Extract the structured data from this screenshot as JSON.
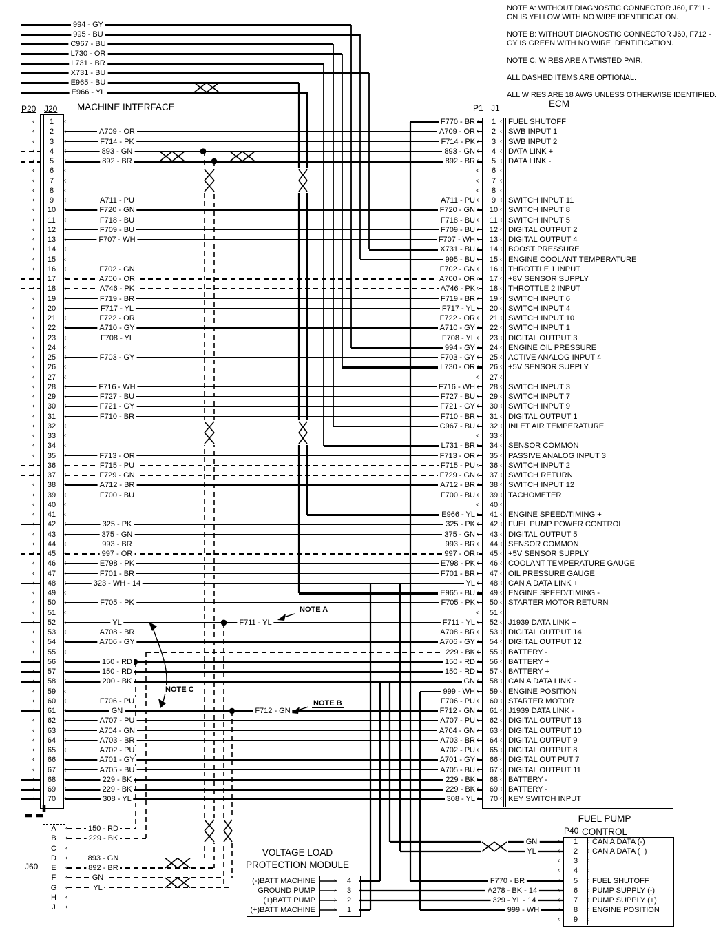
{
  "diagram": {
    "notes": [
      "NOTE A: WITHOUT DIAGNOSTIC CONNECTOR J60, F711 - GN IS YELLOW WITH NO WIRE IDENTIFICATION.",
      "NOTE B: WITHOUT DIAGNOSTIC CONNECTOR J60, F712 - GY IS GREEN WITH NO WIRE IDENTIFICATION.",
      "NOTE C: WIRES ARE A TWISTED PAIR.",
      "ALL DASHED ITEMS ARE OPTIONAL.",
      "ALL WIRES ARE 18 AWG UNLESS OTHERWISE IDENTIFIED."
    ],
    "top_wires": [
      "994 - GY",
      "995 - BU",
      "C967 - BU",
      "L730 - OR",
      "L731 - BR",
      "X731 - BU",
      "E965 - BU",
      "E966 - YL"
    ],
    "top_vertical_labels": [
      "L731 - BR",
      "C967 - BU",
      "L730 - OR",
      "994 - GY",
      "995 - BU",
      "X731 - BU"
    ],
    "bottom_vertical_labels": [
      "323 - WH - 14",
      "200 - BK - 14",
      "GN",
      "YL",
      "F770 - BR",
      "999 - WH"
    ],
    "callouts": {
      "note_a": "NOTE A",
      "note_b": "NOTE B",
      "note_c": "NOTE C",
      "f711_label": "F711 - YL",
      "f712_label": "F712 - GN"
    }
  },
  "machine_interface": {
    "plug": "P20",
    "jack": "J20",
    "title": "MACHINE INTERFACE",
    "pins": [
      {
        "n": "1",
        "w": ""
      },
      {
        "n": "2",
        "w": "A709 - OR"
      },
      {
        "n": "3",
        "w": "F714 - PK"
      },
      {
        "n": "4",
        "w": "893 - GN",
        "s": "b",
        "e": "d"
      },
      {
        "n": "5",
        "w": "892 - BR",
        "s": "b",
        "e": "d"
      },
      {
        "n": "6",
        "w": ""
      },
      {
        "n": "7",
        "w": ""
      },
      {
        "n": "8",
        "w": ""
      },
      {
        "n": "9",
        "w": "A711 - PU"
      },
      {
        "n": "10",
        "w": "F720 - GN"
      },
      {
        "n": "11",
        "w": "F718 - BU"
      },
      {
        "n": "12",
        "w": "F709 - BU"
      },
      {
        "n": "13",
        "w": "F707 - WH"
      },
      {
        "n": "14",
        "w": ""
      },
      {
        "n": "15",
        "w": ""
      },
      {
        "n": "16",
        "w": "F702 - GN",
        "s": "d",
        "e": "d"
      },
      {
        "n": "17",
        "w": "A700 - OR",
        "s": "bd",
        "e": "d"
      },
      {
        "n": "18",
        "w": "A746 - PK",
        "s": "d",
        "e": "d"
      },
      {
        "n": "19",
        "w": "F719 - BR"
      },
      {
        "n": "20",
        "w": "F717 - YL"
      },
      {
        "n": "21",
        "w": "F722 - OR"
      },
      {
        "n": "22",
        "w": "A710 - GY"
      },
      {
        "n": "23",
        "w": "F708 - YL"
      },
      {
        "n": "24",
        "w": ""
      },
      {
        "n": "25",
        "w": "F703 - GY"
      },
      {
        "n": "26",
        "w": ""
      },
      {
        "n": "27",
        "w": ""
      },
      {
        "n": "28",
        "w": "F716 - WH"
      },
      {
        "n": "29",
        "w": "F727 - BU"
      },
      {
        "n": "30",
        "w": "F721 - GY"
      },
      {
        "n": "31",
        "w": "F710 - BR"
      },
      {
        "n": "32",
        "w": ""
      },
      {
        "n": "33",
        "w": ""
      },
      {
        "n": "34",
        "w": ""
      },
      {
        "n": "35",
        "w": "F713 - OR"
      },
      {
        "n": "36",
        "w": "F715 - PU",
        "s": "d",
        "e": "d"
      },
      {
        "n": "37",
        "w": "F729 - GN",
        "s": "d",
        "e": "d"
      },
      {
        "n": "38",
        "w": "A712 - BR"
      },
      {
        "n": "39",
        "w": "F700 - BU"
      },
      {
        "n": "40",
        "w": ""
      },
      {
        "n": "41",
        "w": ""
      },
      {
        "n": "42",
        "w": "325 - PK",
        "e": "s"
      },
      {
        "n": "43",
        "w": "375 - GN"
      },
      {
        "n": "44",
        "w": "993 - BR",
        "s": "d",
        "e": "d"
      },
      {
        "n": "45",
        "w": "997 - OR",
        "s": "d",
        "e": "d"
      },
      {
        "n": "46",
        "w": "E798 - PK"
      },
      {
        "n": "47",
        "w": "F701 - BR"
      },
      {
        "n": "48",
        "w": "323 - WH - 14",
        "s": "b",
        "e": "s"
      },
      {
        "n": "49",
        "w": ""
      },
      {
        "n": "50",
        "w": "F705 - PK"
      },
      {
        "n": "51",
        "w": ""
      },
      {
        "n": "52",
        "w": "YL",
        "s": "b",
        "e": "s"
      },
      {
        "n": "53",
        "w": "A708 - BR"
      },
      {
        "n": "54",
        "w": "A706 - GY"
      },
      {
        "n": "55",
        "w": ""
      },
      {
        "n": "56",
        "w": "150 - RD",
        "s": "b",
        "e": "s"
      },
      {
        "n": "57",
        "w": "150 - RD",
        "s": "b",
        "e": "s"
      },
      {
        "n": "58",
        "w": "200 - BK",
        "s": "b",
        "e": "s"
      },
      {
        "n": "59",
        "w": ""
      },
      {
        "n": "60",
        "w": "F706 - PU"
      },
      {
        "n": "61",
        "w": "GN",
        "s": "b",
        "e": "s"
      },
      {
        "n": "62",
        "w": "A707 - PU"
      },
      {
        "n": "63",
        "w": "A704 - GN"
      },
      {
        "n": "64",
        "w": "A703 - BR",
        "s": "b"
      },
      {
        "n": "65",
        "w": "A702 - PU"
      },
      {
        "n": "66",
        "w": "A701 - GY"
      },
      {
        "n": "67",
        "w": "A705 - BU"
      },
      {
        "n": "68",
        "w": "229 - BK",
        "s": "b",
        "e": "s"
      },
      {
        "n": "69",
        "w": "229 - BK",
        "s": "b",
        "e": "s"
      },
      {
        "n": "70",
        "w": "308 - YL",
        "s": "b",
        "e": "s"
      }
    ]
  },
  "ecm": {
    "plug": "P1",
    "jack": "J1",
    "title": "ECM",
    "pins": [
      {
        "n": "1",
        "w": "F770 - BR",
        "f": "FUEL SHUTOFF",
        "s": "b"
      },
      {
        "n": "2",
        "w": "A709 - OR",
        "f": "SWB INPUT 1"
      },
      {
        "n": "3",
        "w": "F714 - PK",
        "f": "SWB INPUT 2"
      },
      {
        "n": "4",
        "w": "893 - GN",
        "f": "DATA LINK +",
        "s": "b"
      },
      {
        "n": "5",
        "w": "892 - BR",
        "f": "DATA LINK -",
        "s": "b"
      },
      {
        "n": "6",
        "w": "",
        "f": ""
      },
      {
        "n": "7",
        "w": "",
        "f": ""
      },
      {
        "n": "8",
        "w": "",
        "f": ""
      },
      {
        "n": "9",
        "w": "A711 - PU",
        "f": "SWITCH INPUT 11"
      },
      {
        "n": "10",
        "w": "F720 - GN",
        "f": "SWITCH INPUT 8"
      },
      {
        "n": "11",
        "w": "F718 - BU",
        "f": "SWITCH INPUT 5"
      },
      {
        "n": "12",
        "w": "F709 - BU",
        "f": "DIGITAL OUTPUT 2"
      },
      {
        "n": "13",
        "w": "F707 - WH",
        "f": "DIGITAL OUTPUT 4"
      },
      {
        "n": "14",
        "w": "X731 - BU",
        "f": "BOOST PRESSURE",
        "s": "b"
      },
      {
        "n": "15",
        "w": "995 - BU",
        "f": "ENGINE COOLANT TEMPERATURE",
        "s": "b"
      },
      {
        "n": "16",
        "w": "F702 - GN",
        "f": "THROTTLE 1 INPUT",
        "s": "d"
      },
      {
        "n": "17",
        "w": "A700 - OR",
        "f": "+8V SENSOR SUPPLY",
        "s": "bd"
      },
      {
        "n": "18",
        "w": "A746 - PK",
        "f": "THROTTLE 2 INPUT",
        "s": "d"
      },
      {
        "n": "19",
        "w": "F719 - BR",
        "f": "SWITCH INPUT 6"
      },
      {
        "n": "20",
        "w": "F717 - YL",
        "f": "SWITCH INPUT 4"
      },
      {
        "n": "21",
        "w": "F722 - OR",
        "f": "SWITCH INPUT 10"
      },
      {
        "n": "22",
        "w": "A710 - GY",
        "f": "SWITCH INPUT 1"
      },
      {
        "n": "23",
        "w": "F708 - YL",
        "f": "DIGITAL OUTPUT 3"
      },
      {
        "n": "24",
        "w": "994 - GY",
        "f": "ENGINE OIL PRESSURE",
        "s": "b"
      },
      {
        "n": "25",
        "w": "F703 - GY",
        "f": "ACTIVE ANALOG INPUT 4"
      },
      {
        "n": "26",
        "w": "L730 - OR",
        "f": "+5V SENSOR SUPPLY",
        "s": "b"
      },
      {
        "n": "27",
        "w": "",
        "f": ""
      },
      {
        "n": "28",
        "w": "F716 - WH",
        "f": "SWITCH INPUT 3"
      },
      {
        "n": "29",
        "w": "F727 - BU",
        "f": "SWITCH INPUT 7"
      },
      {
        "n": "30",
        "w": "F721 - GY",
        "f": "SWITCH INPUT 9"
      },
      {
        "n": "31",
        "w": "F710 - BR",
        "f": "DIGITAL OUTPUT 1"
      },
      {
        "n": "32",
        "w": "C967 - BU",
        "f": "INLET AIR TEMPERATURE",
        "s": "b"
      },
      {
        "n": "33",
        "w": "",
        "f": ""
      },
      {
        "n": "34",
        "w": "L731 - BR",
        "f": "SENSOR COMMON",
        "s": "b"
      },
      {
        "n": "35",
        "w": "F713 - OR",
        "f": "PASSIVE ANALOG INPUT 3"
      },
      {
        "n": "36",
        "w": "F715 - PU",
        "f": "SWITCH INPUT 2",
        "s": "d"
      },
      {
        "n": "37",
        "w": "F729 - GN",
        "f": "SWITCH RETURN",
        "s": "d"
      },
      {
        "n": "38",
        "w": "A712 - BR",
        "f": "SWITCH INPUT 12"
      },
      {
        "n": "39",
        "w": "F700 - BU",
        "f": "TACHOMETER"
      },
      {
        "n": "40",
        "w": "",
        "f": ""
      },
      {
        "n": "41",
        "w": "E966 - YL",
        "f": "ENGINE SPEED/TIMING +",
        "s": "b"
      },
      {
        "n": "42",
        "w": "325 - PK",
        "f": "FUEL PUMP POWER CONTROL"
      },
      {
        "n": "43",
        "w": "375 - GN",
        "f": "DIGITAL OUTPUT 5"
      },
      {
        "n": "44",
        "w": "993 - BR",
        "f": "SENSOR COMMON",
        "s": "d"
      },
      {
        "n": "45",
        "w": "997 - OR",
        "f": "+5V SENSOR SUPPLY",
        "s": "d"
      },
      {
        "n": "46",
        "w": "E798 - PK",
        "f": "COOLANT TEMPERATURE GAUGE"
      },
      {
        "n": "47",
        "w": "F701 - BR",
        "f": "OIL PRESSURE GAUGE"
      },
      {
        "n": "48",
        "w": "YL",
        "f": "CAN A DATA LINK +",
        "s": "b"
      },
      {
        "n": "49",
        "w": "E965 - BU",
        "f": "ENGINE SPEED/TIMING -",
        "s": "b"
      },
      {
        "n": "50",
        "w": "F705 - PK",
        "f": "STARTER MOTOR RETURN"
      },
      {
        "n": "51",
        "w": "",
        "f": ""
      },
      {
        "n": "52",
        "w": "F711 - YL",
        "f": "J1939 DATA LINK +",
        "s": "b"
      },
      {
        "n": "53",
        "w": "A708 - BR",
        "f": "DIGITAL OUTPUT 14"
      },
      {
        "n": "54",
        "w": "A706 - GY",
        "f": "DIGITAL OUTPUT 12"
      },
      {
        "n": "55",
        "w": "229 - BK",
        "f": "BATTERY -",
        "s": "bd"
      },
      {
        "n": "56",
        "w": "150 - RD",
        "f": "BATTERY +",
        "s": "b"
      },
      {
        "n": "57",
        "w": "150 - RD",
        "f": "BATTERY +",
        "s": "b"
      },
      {
        "n": "58",
        "w": "GN",
        "f": "CAN A DATA LINK -",
        "s": "b"
      },
      {
        "n": "59",
        "w": "999 - WH",
        "f": "ENGINE POSITION",
        "s": "b"
      },
      {
        "n": "60",
        "w": "F706 - PU",
        "f": "STARTER MOTOR"
      },
      {
        "n": "61",
        "w": "F712 - GN",
        "f": "J1939 DATA LINK -",
        "s": "b"
      },
      {
        "n": "62",
        "w": "A707 - PU",
        "f": "DIGITAL OUTPUT 13"
      },
      {
        "n": "63",
        "w": "A704 - GN",
        "f": "DIGITAL OUTPUT 10"
      },
      {
        "n": "64",
        "w": "A703 - BR",
        "f": "DIGITAL OUTPUT 9",
        "s": "b"
      },
      {
        "n": "65",
        "w": "A702 - PU",
        "f": "DIGITAL OUTPUT 8"
      },
      {
        "n": "66",
        "w": "A701 - GY",
        "f": "DIGITAL OUT PUT 7"
      },
      {
        "n": "67",
        "w": "A705 - BU",
        "f": "DIGITAL OUTPUT 11"
      },
      {
        "n": "68",
        "w": "229 - BK",
        "f": "BATTERY -",
        "s": "b"
      },
      {
        "n": "69",
        "w": "229 - BK",
        "f": "BATTERY -",
        "s": "b"
      },
      {
        "n": "70",
        "w": "308 - YL",
        "f": "KEY SWITCH INPUT",
        "s": "b"
      }
    ]
  },
  "j60": {
    "label": "J60",
    "pins": [
      {
        "n": "A",
        "w": "150 - RD"
      },
      {
        "n": "B",
        "w": "229 - BK"
      },
      {
        "n": "C",
        "w": ""
      },
      {
        "n": "D",
        "w": "893 - GN"
      },
      {
        "n": "E",
        "w": "892 - BR"
      },
      {
        "n": "F",
        "w": "GN"
      },
      {
        "n": "G",
        "w": "YL"
      },
      {
        "n": "H",
        "w": ""
      },
      {
        "n": "J",
        "w": ""
      }
    ]
  },
  "vlpm": {
    "title_lines": [
      "VOLTAGE LOAD",
      "PROTECTION MODULE"
    ],
    "rows": [
      {
        "label": "(-)BATT MACHINE",
        "pin": "4"
      },
      {
        "label": "GROUND PUMP",
        "pin": "3"
      },
      {
        "label": "(+)BATT PUMP",
        "pin": "2"
      },
      {
        "label": "(+)BATT MACHINE",
        "pin": "1"
      }
    ]
  },
  "fuel_pump": {
    "title_lines": [
      "FUEL PUMP",
      "CONTROL"
    ],
    "plug": "P40",
    "pins": [
      {
        "n": "1",
        "w": "GN",
        "f": "CAN A DATA (-)"
      },
      {
        "n": "2",
        "w": "YL",
        "f": "CAN A DATA (+)"
      },
      {
        "n": "3",
        "w": "",
        "f": ""
      },
      {
        "n": "4",
        "w": "",
        "f": ""
      },
      {
        "n": "5",
        "w": "F770 - BR",
        "f": "FUEL SHUTOFF"
      },
      {
        "n": "6",
        "w": "A278 - BK - 14",
        "f": "PUMP SUPPLY (-)"
      },
      {
        "n": "7",
        "w": "329 - YL - 14",
        "f": "PUMP SUPPLY (+)"
      },
      {
        "n": "8",
        "w": "999 - WH",
        "f": "ENGINE POSITION"
      },
      {
        "n": "9",
        "w": "",
        "f": ""
      }
    ]
  }
}
